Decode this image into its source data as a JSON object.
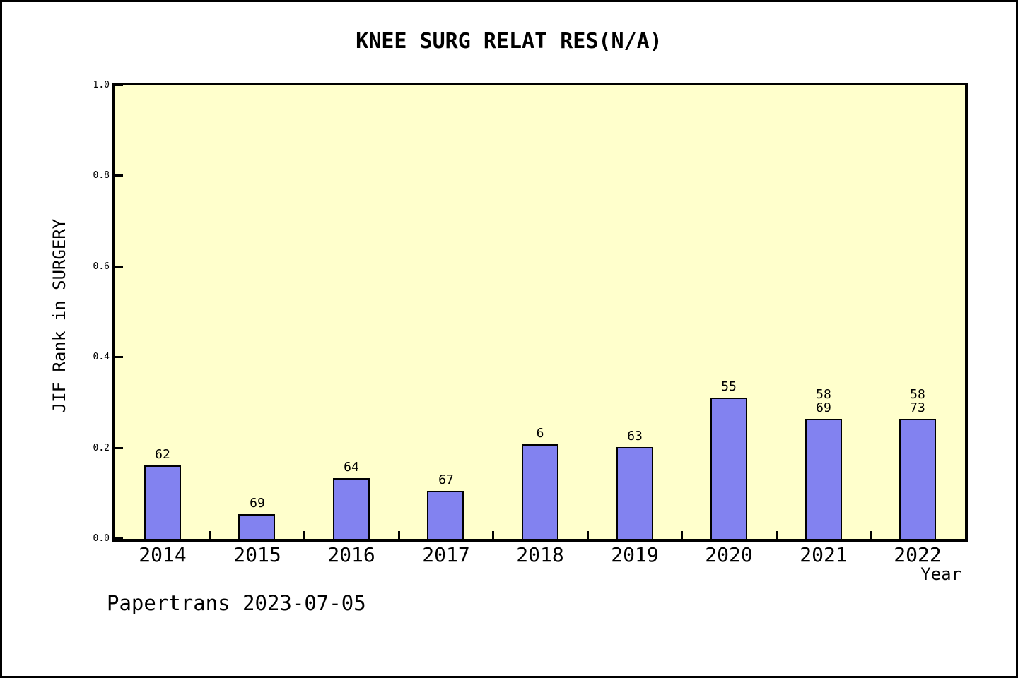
{
  "chart_data": {
    "type": "bar",
    "title": "KNEE SURG RELAT RES(N/A)",
    "xlabel": "Year",
    "ylabel": "JIF Rank in SURGERY",
    "footer": "Papertrans 2023-07-05",
    "categories": [
      "2014",
      "2015",
      "2016",
      "2017",
      "2018",
      "2019",
      "2020",
      "2021",
      "2022"
    ],
    "values": [
      0.162,
      0.055,
      0.134,
      0.106,
      0.209,
      0.203,
      0.311,
      0.265,
      0.265
    ],
    "bar_labels": [
      [
        "62"
      ],
      [
        "69"
      ],
      [
        "64"
      ],
      [
        "67"
      ],
      [
        "6"
      ],
      [
        "63"
      ],
      [
        "55"
      ],
      [
        "58",
        "69"
      ],
      [
        "58",
        "73"
      ]
    ],
    "ylim": [
      0,
      1
    ],
    "yticks": [
      0.0,
      0.2,
      0.4,
      0.6,
      0.8,
      1.0
    ],
    "grid": false,
    "legend": null,
    "colors": {
      "bar": "#8282f0",
      "plot_bg": "#ffffcc",
      "frame": "#000000",
      "page_bg": "#ffffff"
    }
  }
}
